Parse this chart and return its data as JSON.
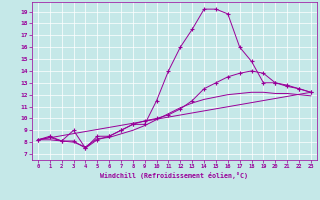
{
  "xlabel": "Windchill (Refroidissement éolien,°C)",
  "ylabel_ticks": [
    7,
    8,
    9,
    10,
    11,
    12,
    13,
    14,
    15,
    16,
    17,
    18,
    19
  ],
  "xticks": [
    0,
    1,
    2,
    3,
    4,
    5,
    6,
    7,
    8,
    9,
    10,
    11,
    12,
    13,
    14,
    15,
    16,
    17,
    18,
    19,
    20,
    21,
    22,
    23
  ],
  "xlim": [
    -0.5,
    23.5
  ],
  "ylim": [
    6.5,
    19.8
  ],
  "bg_color": "#c5e8e8",
  "line_color": "#990099",
  "grid_color": "#ffffff",
  "lines": [
    {
      "x": [
        0,
        1,
        2,
        3,
        4,
        5,
        6,
        7,
        8,
        9,
        10,
        11,
        12,
        13,
        14,
        15,
        16,
        17,
        18,
        19,
        20,
        21,
        22,
        23
      ],
      "y": [
        8.2,
        8.5,
        8.1,
        8.1,
        7.5,
        8.5,
        8.5,
        9.0,
        9.5,
        9.5,
        11.5,
        14.0,
        16.0,
        17.5,
        19.2,
        19.2,
        18.8,
        16.0,
        14.8,
        13.0,
        13.0,
        12.7,
        12.5,
        12.2
      ],
      "marker": true
    },
    {
      "x": [
        0,
        23
      ],
      "y": [
        8.2,
        12.2
      ],
      "marker": false
    },
    {
      "x": [
        0,
        1,
        2,
        3,
        4,
        5,
        6,
        7,
        8,
        9,
        10,
        11,
        12,
        13,
        14,
        15,
        16,
        17,
        18,
        19,
        20,
        21,
        22,
        23
      ],
      "y": [
        8.2,
        8.2,
        8.1,
        8.0,
        7.6,
        8.3,
        8.4,
        8.7,
        9.0,
        9.4,
        9.9,
        10.4,
        10.9,
        11.3,
        11.6,
        11.8,
        12.0,
        12.1,
        12.2,
        12.2,
        12.1,
        12.1,
        12.0,
        11.9
      ],
      "marker": false
    },
    {
      "x": [
        0,
        1,
        2,
        3,
        4,
        5,
        6,
        7,
        8,
        9,
        10,
        11,
        12,
        13,
        14,
        15,
        16,
        17,
        18,
        19,
        20,
        21,
        22,
        23
      ],
      "y": [
        8.2,
        8.4,
        8.1,
        9.0,
        7.5,
        8.2,
        8.5,
        9.0,
        9.5,
        9.8,
        10.0,
        10.3,
        10.8,
        11.5,
        12.5,
        13.0,
        13.5,
        13.8,
        14.0,
        13.8,
        13.0,
        12.8,
        12.5,
        12.2
      ],
      "marker": true
    }
  ]
}
